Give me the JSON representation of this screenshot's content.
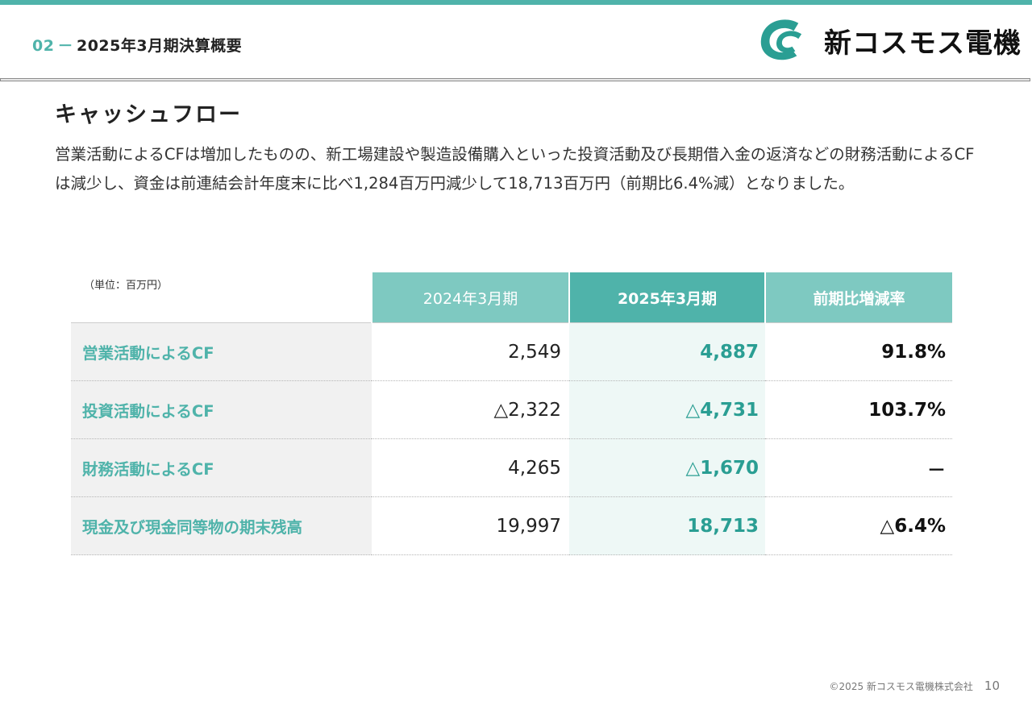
{
  "header": {
    "section_number": "02",
    "section_separator": "－",
    "section_title": "2025年3月期決算概要",
    "logo_text": "新コスモス電機"
  },
  "page": {
    "title": "キャッシュフロー",
    "paragraph": "営業活動によるCFは増加したものの、新工場建設や製造設備購入といった投資活動及び長期借入金の返済などの財務活動によるCFは減少し、資金は前連結会計年度末に比べ1,284百万円減少して18,713百万円（前期比6.4%減）となりました。"
  },
  "table": {
    "unit": "（単位：百万円）",
    "columns": [
      "2024年3月期",
      "2025年3月期",
      "前期比増減率"
    ],
    "rows": [
      {
        "label": "営業活動によるCF",
        "prev": "2,549",
        "curr": "4,887",
        "rate": "91.8%"
      },
      {
        "label": "投資活動によるCF",
        "prev": "△2,322",
        "curr": "△4,731",
        "rate": "103.7%"
      },
      {
        "label": "財務活動によるCF",
        "prev": "4,265",
        "curr": "△1,670",
        "rate": "－"
      },
      {
        "label": "現金及び現金同等物の期末残高",
        "prev": "19,997",
        "curr": "18,713",
        "rate": "△6.4%"
      }
    ]
  },
  "footer": {
    "copyright": "©2025 新コスモス電機株式会社",
    "page_number": "10"
  },
  "colors": {
    "accent": "#4fb3aa",
    "accent_light": "#7ec9c1",
    "current_value": "#2a9e93"
  }
}
